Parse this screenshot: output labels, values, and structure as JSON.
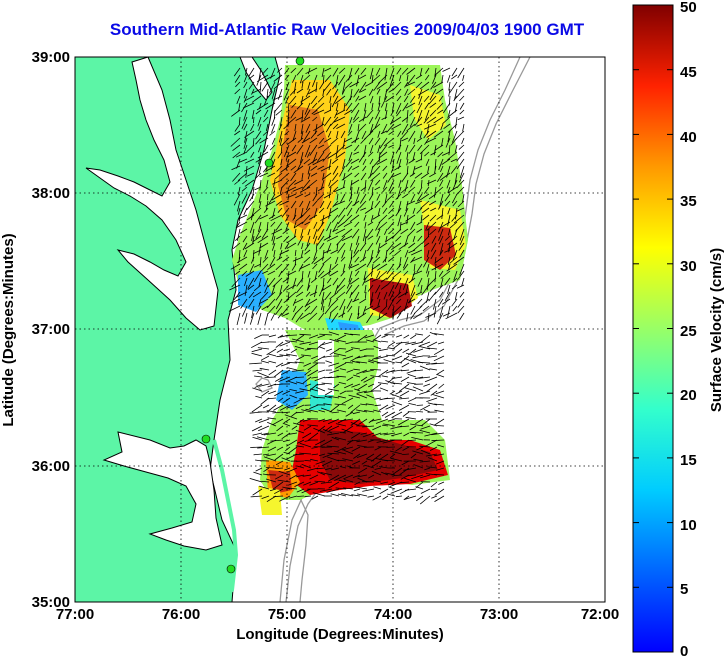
{
  "title": "Southern Mid-Atlantic Raw Velocities 2009/04/03 1900 GMT",
  "axes": {
    "xlabel": "Longitude (Degrees:Minutes)",
    "ylabel": "Latitude (Degrees:Minutes)",
    "x_ticks": [
      "77:00",
      "76:00",
      "75:00",
      "74:00",
      "73:00",
      "72:00"
    ],
    "y_ticks": [
      "39:00",
      "38:00",
      "37:00",
      "36:00",
      "35:00"
    ],
    "lon_range": [
      -77,
      -72
    ],
    "lat_range": [
      35,
      39
    ]
  },
  "colorbar": {
    "label": "Surface Velocity (cm/s)",
    "ticks": [
      "50",
      "45",
      "40",
      "35",
      "30",
      "25",
      "20",
      "15",
      "10",
      "5",
      "0"
    ],
    "range": [
      0,
      50
    ],
    "colormap": "jet"
  },
  "colors": {
    "land": "#5cf5a6",
    "coast_line": "#000000",
    "bathymetry": "#999999",
    "station": "#22dd22",
    "title": "#0a0ae6"
  },
  "stations_lonlat": [
    [
      -74.87,
      38.93
    ],
    [
      -75.15,
      38.22
    ],
    [
      -75.72,
      36.17
    ],
    [
      -75.53,
      35.3
    ]
  ]
}
